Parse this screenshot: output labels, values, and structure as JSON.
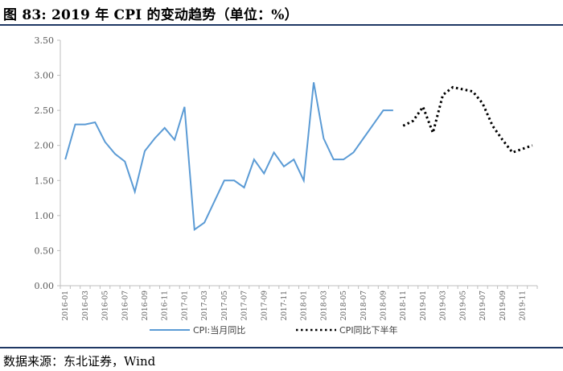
{
  "title": "图 83:  2019 年 CPI 的变动趋势（单位：%）",
  "source": "数据来源：东北证券，Wind",
  "chart_data": {
    "type": "line",
    "ylim": [
      0,
      3.5
    ],
    "yticks": [
      "0.00",
      "0.50",
      "1.00",
      "1.50",
      "2.00",
      "2.50",
      "3.00",
      "3.50"
    ],
    "ytick_values": [
      0,
      0.5,
      1.0,
      1.5,
      2.0,
      2.5,
      3.0,
      3.5
    ],
    "x_tick_labels": [
      "2016-01",
      "2016-03",
      "2016-05",
      "2016-07",
      "2016-09",
      "2016-11",
      "2017-01",
      "2017-03",
      "2017-05",
      "2017-07",
      "2017-09",
      "2017-11",
      "2018-01",
      "2018-03",
      "2018-05",
      "2018-07",
      "2018-09",
      "2018-11",
      "2019-01",
      "2019-03",
      "2019-05",
      "2019-07",
      "2019-09",
      "2019-11"
    ],
    "grid": false,
    "legend_position": "bottom",
    "colors": {
      "actual": "#5b9bd5",
      "forecast": "#000000",
      "axis": "#bfbfbf"
    },
    "series": [
      {
        "name": "CPI:当月同比",
        "style": "solid",
        "x": [
          "2016-01",
          "2016-02",
          "2016-03",
          "2016-04",
          "2016-05",
          "2016-06",
          "2016-07",
          "2016-08",
          "2016-09",
          "2016-10",
          "2016-11",
          "2016-12",
          "2017-01",
          "2017-02",
          "2017-03",
          "2017-04",
          "2017-05",
          "2017-06",
          "2017-07",
          "2017-08",
          "2017-09",
          "2017-10",
          "2017-11",
          "2017-12",
          "2018-01",
          "2018-02",
          "2018-03",
          "2018-04",
          "2018-05",
          "2018-06",
          "2018-07",
          "2018-08",
          "2018-09",
          "2018-10"
        ],
        "values": [
          1.8,
          2.3,
          2.3,
          2.33,
          2.05,
          1.88,
          1.77,
          1.34,
          1.92,
          2.1,
          2.25,
          2.08,
          2.55,
          0.8,
          0.9,
          1.2,
          1.5,
          1.5,
          1.4,
          1.8,
          1.6,
          1.9,
          1.7,
          1.8,
          1.5,
          2.9,
          2.1,
          1.8,
          1.8,
          1.9,
          2.1,
          2.3,
          2.5,
          2.5
        ]
      },
      {
        "name": "CPI同比下半年",
        "style": "dotted",
        "x": [
          "2018-11",
          "2018-12",
          "2019-01",
          "2019-02",
          "2019-03",
          "2019-04",
          "2019-05",
          "2019-06",
          "2019-07",
          "2019-08",
          "2019-09",
          "2019-10",
          "2019-11",
          "2019-12"
        ],
        "values": [
          2.28,
          2.35,
          2.55,
          2.18,
          2.72,
          2.83,
          2.8,
          2.77,
          2.6,
          2.28,
          2.08,
          1.9,
          1.95,
          2.0
        ]
      }
    ]
  }
}
